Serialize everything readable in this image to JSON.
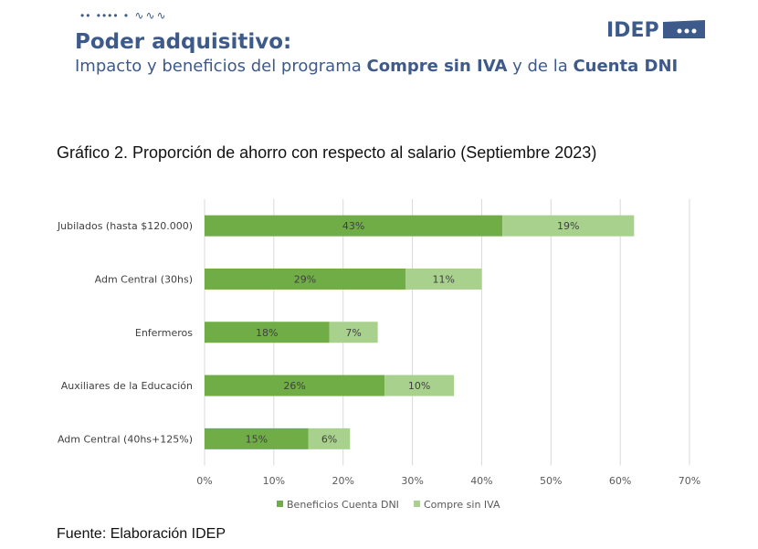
{
  "header": {
    "decoration": "•• •••• • ∿∿∿",
    "title": "Poder adquisitivo:",
    "subtitle_prefix": "Impacto y beneficios del programa ",
    "subtitle_bold1": "Compre sin IVA",
    "subtitle_mid": " y de la ",
    "subtitle_bold2": "Cuenta DNI",
    "logo_text": "IDEP"
  },
  "chart_data": {
    "type": "bar",
    "orientation": "horizontal",
    "stacked": true,
    "title": "Gráfico 2. Proporción de ahorro con respecto al salario (Septiembre 2023)",
    "categories": [
      "Jubilados (hasta $120.000)",
      "Adm Central (30hs)",
      "Enfermeros",
      "Auxiliares de la Educación",
      "Adm Central (40hs+125%)"
    ],
    "series": [
      {
        "name": "Beneficios Cuenta DNI",
        "values": [
          43,
          29,
          18,
          26,
          15
        ],
        "labels": [
          "43%",
          "29%",
          "18%",
          "26%",
          "15%"
        ],
        "color": "#70ad47"
      },
      {
        "name": "Compre sin IVA",
        "values": [
          19,
          11,
          7,
          10,
          6
        ],
        "labels": [
          "19%",
          "11%",
          "7%",
          "10%",
          "6%"
        ],
        "color": "#a9d18e"
      }
    ],
    "xlim": [
      0,
      70
    ],
    "xticks": [
      "0%",
      "10%",
      "20%",
      "30%",
      "40%",
      "50%",
      "60%",
      "70%"
    ],
    "grid": true,
    "legend": "bottom"
  },
  "source": "Fuente: Elaboración IDEP",
  "colors": {
    "brand": "#3d5a8a"
  }
}
